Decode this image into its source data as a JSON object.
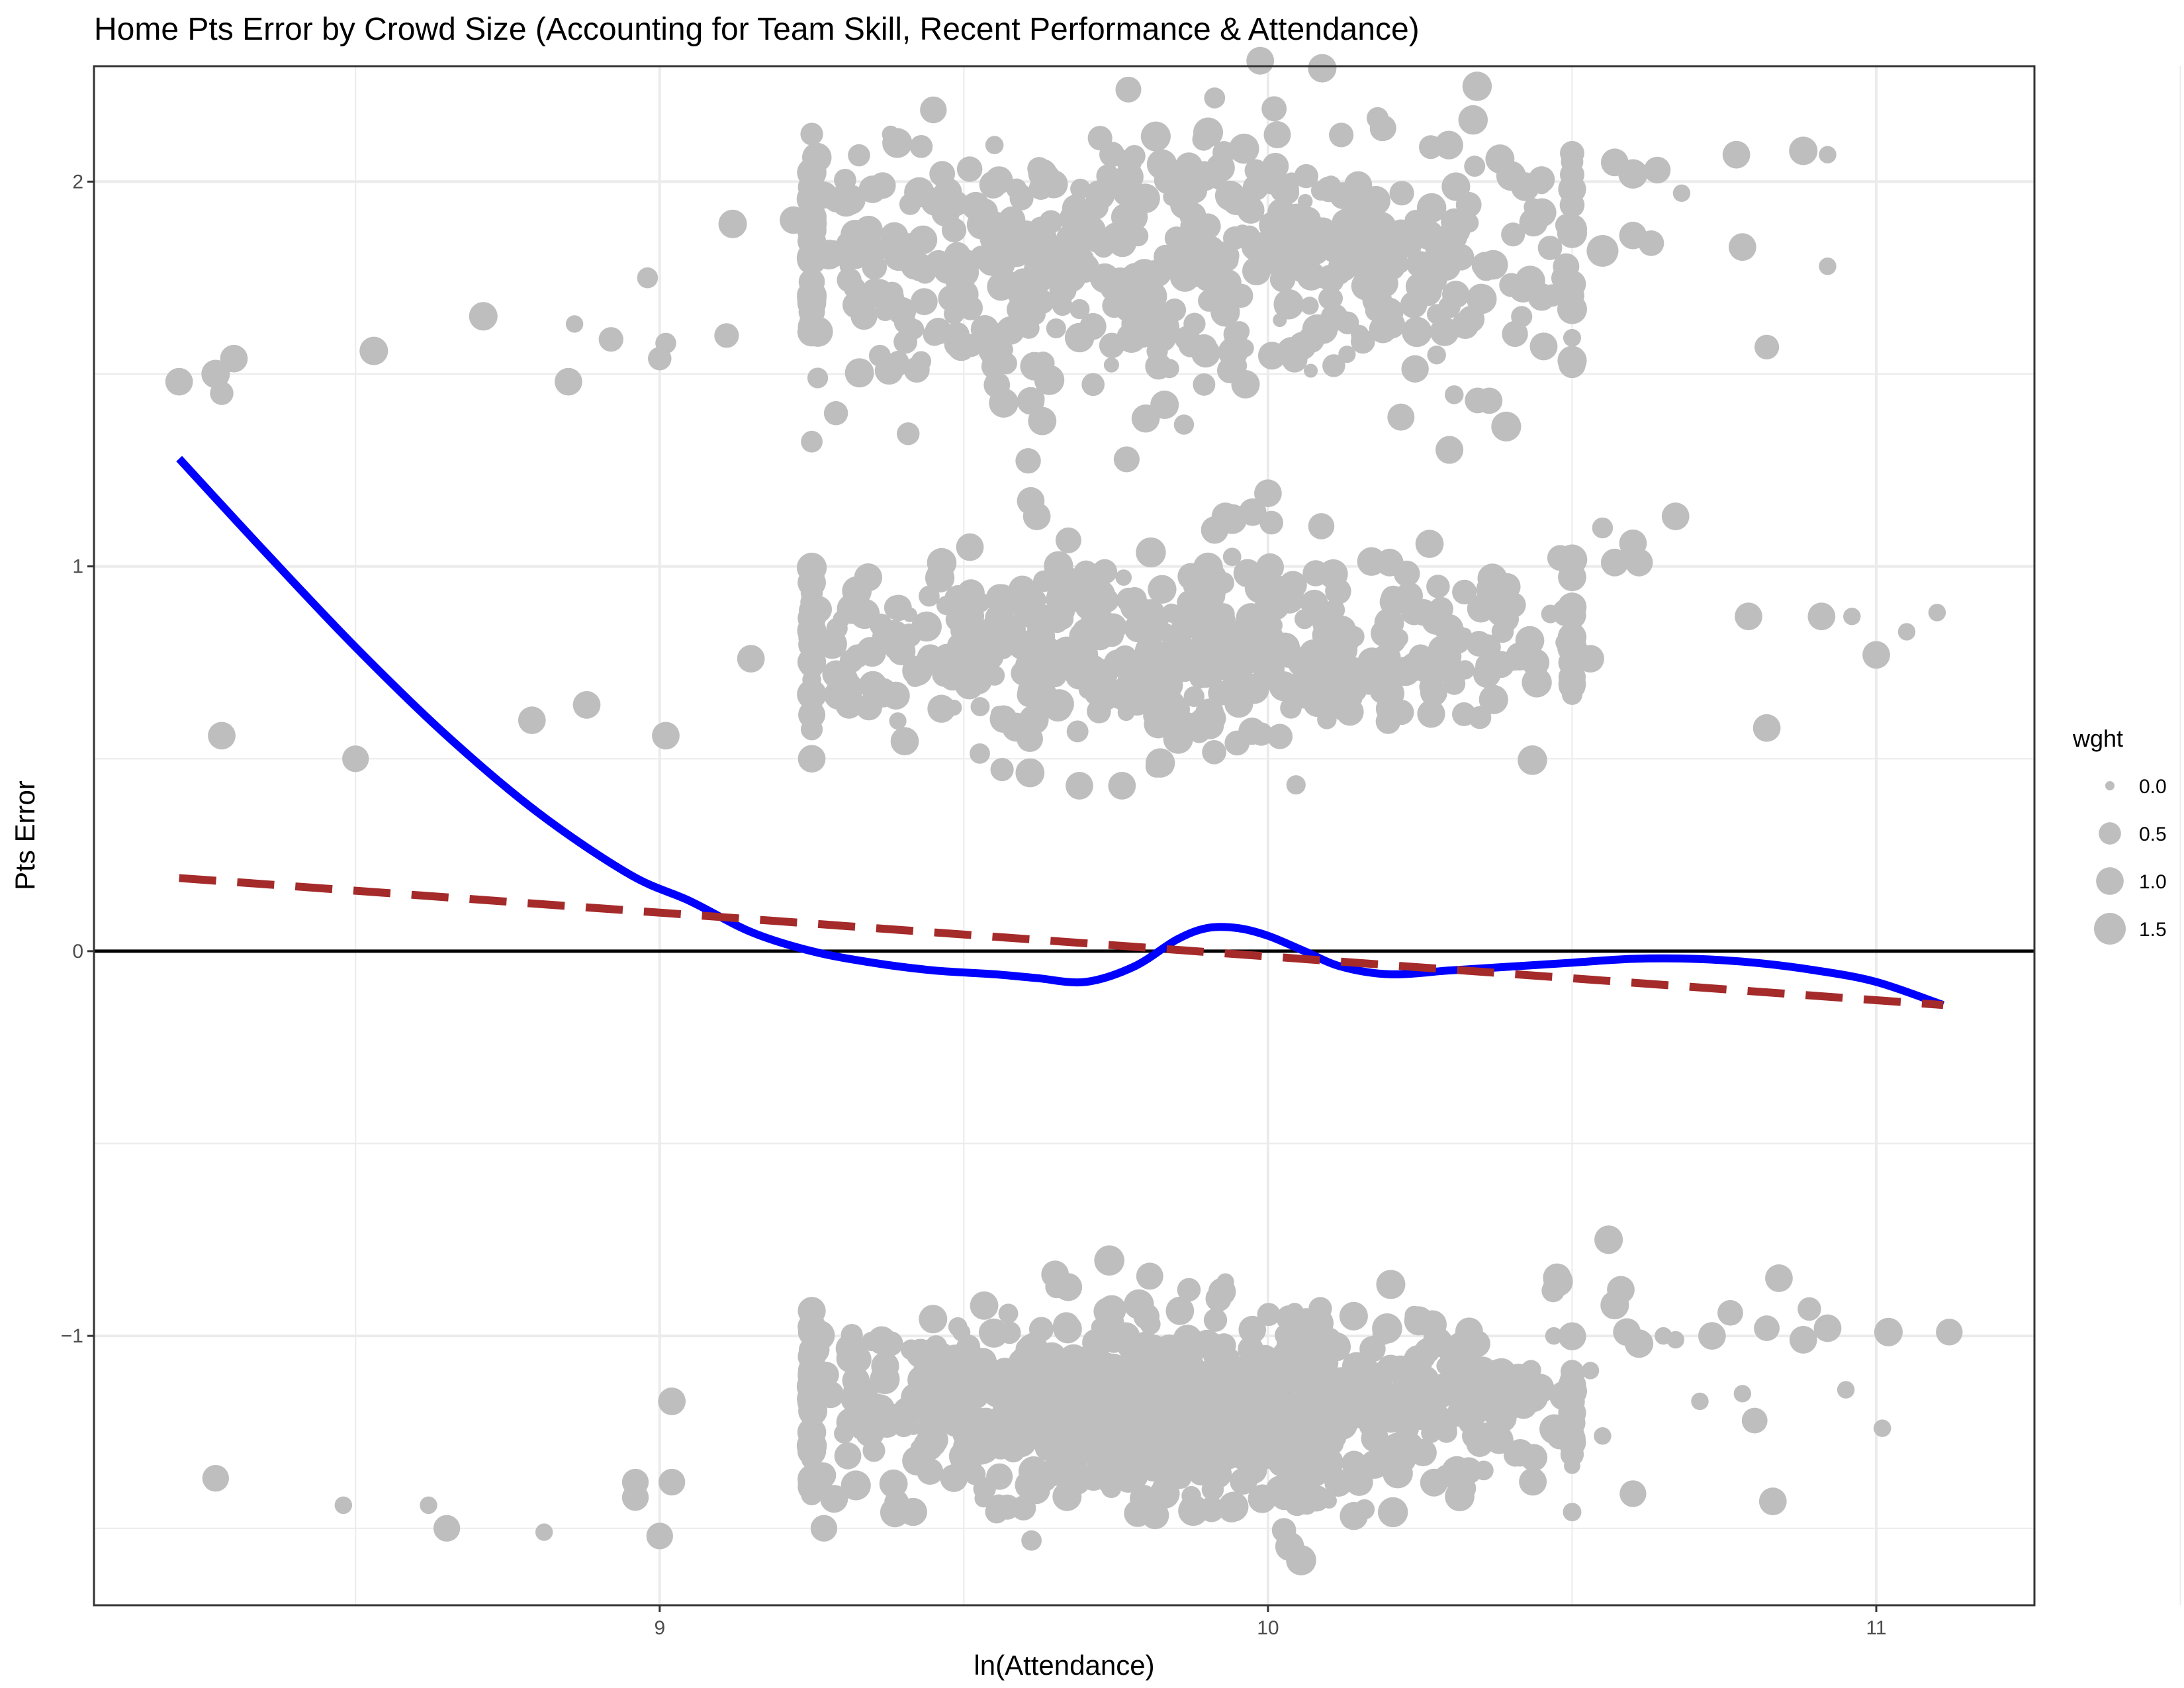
{
  "chart_data": {
    "type": "scatter",
    "title": "Home Pts Error by Crowd Size (Accounting for Team Skill, Recent Performance & Attendance)",
    "xlabel": "ln(Attendance)",
    "ylabel": "Pts Error",
    "xlim": [
      8.07,
      11.26
    ],
    "ylim": [
      -1.7,
      2.3
    ],
    "x_ticks": [
      9,
      10,
      11
    ],
    "y_ticks": [
      -1,
      0,
      1,
      2
    ],
    "x_tick_labels": [
      "9",
      "10",
      "11"
    ],
    "y_tick_labels": [
      "−1",
      "0",
      "1",
      "2"
    ],
    "grid": true,
    "reference_line": {
      "y": 0,
      "color": "#000000"
    },
    "legend": {
      "title": "wght",
      "placement": "right",
      "entries": [
        {
          "label": "0.0",
          "value": 0.0
        },
        {
          "label": "0.5",
          "value": 0.5
        },
        {
          "label": "1.0",
          "value": 1.0
        },
        {
          "label": "1.5",
          "value": 1.5
        }
      ]
    },
    "point_color": "#bebebe",
    "clusters": [
      {
        "name": "pts-error-2",
        "y_center": 1.8,
        "y_spread": 0.22,
        "x_center": 9.85,
        "x_spread": 0.38,
        "count": 520
      },
      {
        "name": "pts-error-1",
        "y_center": 0.78,
        "y_spread": 0.16,
        "x_center": 9.85,
        "x_spread": 0.34,
        "count": 470
      },
      {
        "name": "pts-error-neg1",
        "y_center": -1.18,
        "y_spread": 0.15,
        "x_center": 9.85,
        "x_spread": 0.33,
        "count": 900
      }
    ],
    "points": [
      {
        "x": 8.21,
        "y": 1.48,
        "w": 1.0
      },
      {
        "x": 8.27,
        "y": 1.5,
        "w": 1.1
      },
      {
        "x": 8.28,
        "y": 1.45,
        "w": 0.6
      },
      {
        "x": 8.3,
        "y": 1.54,
        "w": 1.0
      },
      {
        "x": 8.53,
        "y": 1.56,
        "w": 1.1
      },
      {
        "x": 8.71,
        "y": 1.65,
        "w": 1.1
      },
      {
        "x": 8.86,
        "y": 1.63,
        "w": 0.2
      },
      {
        "x": 8.85,
        "y": 1.48,
        "w": 1.0
      },
      {
        "x": 8.92,
        "y": 1.59,
        "w": 0.7
      },
      {
        "x": 8.98,
        "y": 1.75,
        "w": 0.4
      },
      {
        "x": 9.0,
        "y": 1.54,
        "w": 0.6
      },
      {
        "x": 9.01,
        "y": 1.58,
        "w": 0.4
      },
      {
        "x": 9.11,
        "y": 1.6,
        "w": 0.7
      },
      {
        "x": 9.12,
        "y": 1.89,
        "w": 1.1
      },
      {
        "x": 9.22,
        "y": 1.9,
        "w": 1.0
      },
      {
        "x": 9.26,
        "y": 1.61,
        "w": 1.3
      },
      {
        "x": 9.35,
        "y": 1.98,
        "w": 1.0
      },
      {
        "x": 9.47,
        "y": 1.92,
        "w": 1.1
      },
      {
        "x": 9.55,
        "y": 1.52,
        "w": 0.8
      },
      {
        "x": 9.61,
        "y": 1.43,
        "w": 1.0
      },
      {
        "x": 9.83,
        "y": 1.42,
        "w": 1.1
      },
      {
        "x": 9.82,
        "y": 1.52,
        "w": 0.9
      },
      {
        "x": 9.75,
        "y": 1.99,
        "w": 0.8
      },
      {
        "x": 9.87,
        "y": 2.04,
        "w": 1.0
      },
      {
        "x": 10.1,
        "y": 1.98,
        "w": 0.8
      },
      {
        "x": 10.22,
        "y": 1.97,
        "w": 0.7
      },
      {
        "x": 10.33,
        "y": 1.94,
        "w": 0.8
      },
      {
        "x": 10.35,
        "y": 1.7,
        "w": 0.9
      },
      {
        "x": 10.45,
        "y": 1.7,
        "w": 1.0
      },
      {
        "x": 10.45,
        "y": 1.99,
        "w": 0.2
      },
      {
        "x": 10.55,
        "y": 1.82,
        "w": 1.5
      },
      {
        "x": 10.57,
        "y": 2.05,
        "w": 1.0
      },
      {
        "x": 10.6,
        "y": 2.02,
        "w": 1.2
      },
      {
        "x": 10.6,
        "y": 1.86,
        "w": 1.0
      },
      {
        "x": 10.63,
        "y": 1.84,
        "w": 0.8
      },
      {
        "x": 10.64,
        "y": 2.03,
        "w": 0.9
      },
      {
        "x": 10.68,
        "y": 1.97,
        "w": 0.2
      },
      {
        "x": 10.77,
        "y": 2.07,
        "w": 1.0
      },
      {
        "x": 10.78,
        "y": 1.83,
        "w": 1.0
      },
      {
        "x": 10.82,
        "y": 1.57,
        "w": 0.7
      },
      {
        "x": 10.88,
        "y": 2.08,
        "w": 1.1
      },
      {
        "x": 10.92,
        "y": 2.07,
        "w": 0.2
      },
      {
        "x": 10.92,
        "y": 1.78,
        "w": 0.2
      },
      {
        "x": 8.28,
        "y": 0.56,
        "w": 1.0
      },
      {
        "x": 8.5,
        "y": 0.5,
        "w": 0.9
      },
      {
        "x": 8.79,
        "y": 0.6,
        "w": 1.0
      },
      {
        "x": 8.88,
        "y": 0.64,
        "w": 1.0
      },
      {
        "x": 9.01,
        "y": 0.56,
        "w": 1.0
      },
      {
        "x": 9.15,
        "y": 0.76,
        "w": 1.0
      },
      {
        "x": 9.25,
        "y": 0.5,
        "w": 1.0
      },
      {
        "x": 9.29,
        "y": 0.72,
        "w": 1.0
      },
      {
        "x": 9.61,
        "y": 1.17,
        "w": 1.0
      },
      {
        "x": 9.62,
        "y": 1.13,
        "w": 1.0
      },
      {
        "x": 9.51,
        "y": 1.05,
        "w": 1.0
      },
      {
        "x": 9.69,
        "y": 0.43,
        "w": 1.0
      },
      {
        "x": 9.76,
        "y": 0.43,
        "w": 1.0
      },
      {
        "x": 9.93,
        "y": 1.13,
        "w": 1.0
      },
      {
        "x": 10.0,
        "y": 1.19,
        "w": 1.0
      },
      {
        "x": 10.2,
        "y": 1.01,
        "w": 1.0
      },
      {
        "x": 10.2,
        "y": 0.63,
        "w": 1.0
      },
      {
        "x": 10.35,
        "y": 0.89,
        "w": 1.0
      },
      {
        "x": 10.36,
        "y": 0.72,
        "w": 1.0
      },
      {
        "x": 10.49,
        "y": 0.88,
        "w": 1.0
      },
      {
        "x": 10.44,
        "y": 0.75,
        "w": 1.0
      },
      {
        "x": 10.5,
        "y": 0.75,
        "w": 1.0
      },
      {
        "x": 10.53,
        "y": 0.76,
        "w": 1.0
      },
      {
        "x": 10.55,
        "y": 1.1,
        "w": 0.4
      },
      {
        "x": 10.57,
        "y": 1.01,
        "w": 1.0
      },
      {
        "x": 10.6,
        "y": 1.06,
        "w": 1.0
      },
      {
        "x": 10.61,
        "y": 1.01,
        "w": 1.0
      },
      {
        "x": 10.67,
        "y": 1.13,
        "w": 1.0
      },
      {
        "x": 10.79,
        "y": 0.87,
        "w": 1.0
      },
      {
        "x": 10.82,
        "y": 0.58,
        "w": 1.0
      },
      {
        "x": 10.91,
        "y": 0.87,
        "w": 1.0
      },
      {
        "x": 10.96,
        "y": 0.87,
        "w": 0.2
      },
      {
        "x": 11.0,
        "y": 0.77,
        "w": 1.0
      },
      {
        "x": 11.05,
        "y": 0.83,
        "w": 0.2
      },
      {
        "x": 11.1,
        "y": 0.88,
        "w": 0.2
      },
      {
        "x": 8.27,
        "y": -1.37,
        "w": 0.9
      },
      {
        "x": 8.48,
        "y": -1.44,
        "w": 0.2
      },
      {
        "x": 8.62,
        "y": -1.44,
        "w": 0.2
      },
      {
        "x": 8.65,
        "y": -1.5,
        "w": 0.9
      },
      {
        "x": 8.81,
        "y": -1.51,
        "w": 0.2
      },
      {
        "x": 8.96,
        "y": -1.38,
        "w": 0.9
      },
      {
        "x": 8.96,
        "y": -1.42,
        "w": 0.9
      },
      {
        "x": 9.0,
        "y": -1.52,
        "w": 0.9
      },
      {
        "x": 9.02,
        "y": -1.38,
        "w": 0.9
      },
      {
        "x": 9.02,
        "y": -1.17,
        "w": 1.0
      },
      {
        "x": 9.25,
        "y": -1.09,
        "w": 1.0
      },
      {
        "x": 9.27,
        "y": -1.5,
        "w": 0.9
      },
      {
        "x": 9.38,
        "y": -1.02,
        "w": 0.7
      },
      {
        "x": 9.65,
        "y": -0.84,
        "w": 1.0
      },
      {
        "x": 9.87,
        "y": -0.88,
        "w": 0.6
      },
      {
        "x": 9.93,
        "y": -0.86,
        "w": 0.2
      },
      {
        "x": 9.94,
        "y": -1.45,
        "w": 0.9
      },
      {
        "x": 10.02,
        "y": -1.4,
        "w": 1.1
      },
      {
        "x": 10.15,
        "y": -1.38,
        "w": 1.0
      },
      {
        "x": 10.22,
        "y": -1.32,
        "w": 1.1
      },
      {
        "x": 10.33,
        "y": -1.35,
        "w": 0.9
      },
      {
        "x": 10.34,
        "y": -1.26,
        "w": 0.8
      },
      {
        "x": 10.38,
        "y": -1.27,
        "w": 1.1
      },
      {
        "x": 10.42,
        "y": -1.18,
        "w": 1.0
      },
      {
        "x": 10.45,
        "y": -1.14,
        "w": 0.8
      },
      {
        "x": 10.47,
        "y": -1.0,
        "w": 0.2
      },
      {
        "x": 10.53,
        "y": -1.09,
        "w": 0.2
      },
      {
        "x": 10.55,
        "y": -1.26,
        "w": 0.2
      },
      {
        "x": 10.56,
        "y": -0.75,
        "w": 1.1
      },
      {
        "x": 10.57,
        "y": -0.92,
        "w": 1.1
      },
      {
        "x": 10.58,
        "y": -0.88,
        "w": 1.0
      },
      {
        "x": 10.59,
        "y": -0.99,
        "w": 1.0
      },
      {
        "x": 10.6,
        "y": -1.41,
        "w": 0.9
      },
      {
        "x": 10.61,
        "y": -1.02,
        "w": 1.1
      },
      {
        "x": 10.65,
        "y": -1.0,
        "w": 0.2
      },
      {
        "x": 10.67,
        "y": -1.01,
        "w": 0.2
      },
      {
        "x": 10.71,
        "y": -1.17,
        "w": 0.2
      },
      {
        "x": 10.73,
        "y": -1.0,
        "w": 1.0
      },
      {
        "x": 10.76,
        "y": -0.94,
        "w": 0.8
      },
      {
        "x": 10.78,
        "y": -1.15,
        "w": 0.2
      },
      {
        "x": 10.8,
        "y": -1.22,
        "w": 0.8
      },
      {
        "x": 10.82,
        "y": -0.98,
        "w": 0.8
      },
      {
        "x": 10.83,
        "y": -1.43,
        "w": 1.0
      },
      {
        "x": 10.84,
        "y": -0.85,
        "w": 1.0
      },
      {
        "x": 10.88,
        "y": -1.01,
        "w": 1.0
      },
      {
        "x": 10.89,
        "y": -0.93,
        "w": 0.6
      },
      {
        "x": 10.92,
        "y": -0.98,
        "w": 1.0
      },
      {
        "x": 10.95,
        "y": -1.14,
        "w": 0.2
      },
      {
        "x": 11.02,
        "y": -0.99,
        "w": 1.1
      },
      {
        "x": 11.01,
        "y": -1.24,
        "w": 0.2
      },
      {
        "x": 11.12,
        "y": -0.99,
        "w": 0.9
      }
    ],
    "series": [
      {
        "name": "smooth-fit",
        "style": "solid",
        "color": "#0000ff",
        "x": [
          8.21,
          8.35,
          8.5,
          8.65,
          8.8,
          8.95,
          9.05,
          9.15,
          9.25,
          9.35,
          9.45,
          9.55,
          9.62,
          9.7,
          9.78,
          9.85,
          9.9,
          9.95,
          10.0,
          10.06,
          10.12,
          10.2,
          10.3,
          10.4,
          10.5,
          10.6,
          10.7,
          10.8,
          10.9,
          11.0,
          11.11
        ],
        "y": [
          1.28,
          1.04,
          0.79,
          0.56,
          0.36,
          0.2,
          0.13,
          0.05,
          0.0,
          -0.03,
          -0.05,
          -0.06,
          -0.07,
          -0.08,
          -0.04,
          0.03,
          0.06,
          0.06,
          0.04,
          0.0,
          -0.04,
          -0.06,
          -0.05,
          -0.04,
          -0.03,
          -0.02,
          -0.02,
          -0.03,
          -0.05,
          -0.08,
          -0.14
        ]
      },
      {
        "name": "linear-fit",
        "style": "dashed",
        "color": "#a52a2a",
        "x": [
          8.21,
          11.11
        ],
        "y": [
          0.19,
          -0.14
        ]
      }
    ]
  }
}
